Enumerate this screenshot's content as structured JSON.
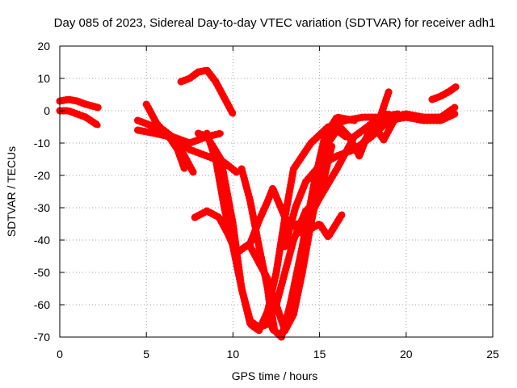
{
  "chart_data": {
    "type": "scatter",
    "title": "Day 085 of 2023, Sidereal Day-to-day VTEC variation (SDTVAR) for receiver adh1",
    "xlabel": "GPS time / hours",
    "ylabel": "SDTVAR / TECUs",
    "xlim": [
      0,
      25
    ],
    "ylim": [
      -70,
      20
    ],
    "x_ticks": [
      "0",
      "5",
      "10",
      "15",
      "20",
      "25"
    ],
    "y_ticks": [
      "20",
      "10",
      "0",
      "-10",
      "-20",
      "-30",
      "-40",
      "-50",
      "-60",
      "-70"
    ],
    "grid": true,
    "marker_color": "#ff0000",
    "series": [
      {
        "x": [
          0.0,
          0.5,
          1.0,
          1.5,
          2.2
        ],
        "y": [
          3,
          3.5,
          3,
          2,
          1
        ]
      },
      {
        "x": [
          0.0,
          0.5,
          1.0,
          1.5,
          2.2
        ],
        "y": [
          0,
          0,
          -1,
          -2,
          -4.5
        ]
      },
      {
        "x": [
          4.5,
          5.5,
          6.5,
          7.5,
          8.5,
          9.3
        ],
        "y": [
          -3,
          -5,
          -8,
          -10,
          -8,
          -7
        ]
      },
      {
        "x": [
          4.5,
          5.5,
          6.3,
          7.0,
          7.7
        ],
        "y": [
          -6,
          -7,
          -8,
          -12,
          -19
        ]
      },
      {
        "x": [
          5.0,
          5.6,
          6.3,
          6.8,
          7.2
        ],
        "y": [
          2,
          -4,
          -8,
          -12,
          -18
        ]
      },
      {
        "x": [
          5.3,
          6.0,
          6.7,
          7.5,
          8.5,
          9.5,
          10.2
        ],
        "y": [
          -5,
          -6,
          -9,
          -12,
          -14,
          -16,
          -19
        ]
      },
      {
        "x": [
          7.0,
          7.5,
          8.0,
          8.5,
          9.0,
          9.6,
          10.0
        ],
        "y": [
          9,
          10,
          12,
          12.5,
          9,
          3,
          -1
        ]
      },
      {
        "x": [
          8.0,
          8.5,
          9.3,
          10.0,
          10.5,
          11.0,
          11.5,
          12.0,
          12.5,
          13.0,
          13.5,
          14.2,
          14.8,
          15.3,
          15.7
        ],
        "y": [
          -7,
          -8,
          -15,
          -35,
          -55,
          -65,
          -67,
          -66,
          -60,
          -50,
          -40,
          -31,
          -28,
          -20,
          -11
        ]
      },
      {
        "x": [
          8.5,
          9.0,
          9.5,
          10.0,
          10.5,
          11.0,
          11.5,
          12.0,
          12.5,
          13.0,
          13.5,
          14.5,
          15.5,
          16.5,
          17.5,
          18.5,
          19.5
        ],
        "y": [
          -7,
          -15,
          -30,
          -42,
          -55,
          -66,
          -68,
          -62,
          -50,
          -33,
          -18,
          -10,
          -5,
          -3,
          -2,
          -2,
          -1
        ]
      },
      {
        "x": [
          7.8,
          8.5,
          9.2,
          9.7,
          10.2,
          11.0,
          11.5,
          12.0,
          12.3,
          13.0,
          14.0,
          15.0,
          15.5,
          16.3
        ],
        "y": [
          -33,
          -31,
          -33,
          -38,
          -44,
          -41,
          -34,
          -28,
          -24,
          -33,
          -38,
          -35,
          -39,
          -32
        ]
      },
      {
        "x": [
          10.5,
          11.0,
          11.5,
          12.0,
          12.3
        ],
        "y": [
          -18,
          -28,
          -42,
          -55,
          -68
        ]
      },
      {
        "x": [
          11.0,
          11.5,
          12.0,
          12.5,
          13.0,
          13.5,
          14.0,
          14.5,
          15.0,
          15.5,
          16.0,
          16.5
        ],
        "y": [
          -42,
          -47,
          -52,
          -60,
          -68,
          -63,
          -50,
          -35,
          -22,
          -10,
          -6,
          -8
        ]
      },
      {
        "x": [
          12.0,
          12.4,
          12.8,
          13.3,
          14.0,
          14.7,
          15.3,
          16.0,
          17.0
        ],
        "y": [
          -55,
          -68,
          -70,
          -60,
          -42,
          -22,
          -8,
          -2,
          -3
        ]
      },
      {
        "x": [
          13.0,
          13.6,
          14.2,
          15.0,
          16.0,
          17.0,
          18.0,
          19.0,
          20.0
        ],
        "y": [
          -42,
          -30,
          -22,
          -17,
          -14,
          -12,
          -8,
          -3,
          -2
        ]
      },
      {
        "x": [
          13.5,
          14.0,
          14.5,
          15.0,
          16.0,
          17.0,
          18.0,
          19.0,
          20.0
        ],
        "y": [
          -35,
          -35,
          -32,
          -27,
          -18,
          -8,
          -4,
          -2,
          -1
        ]
      },
      {
        "x": [
          16.0,
          16.7,
          17.3,
          17.8,
          18.5,
          19.0
        ],
        "y": [
          -4,
          -8,
          -14,
          -7,
          -2,
          6
        ]
      },
      {
        "x": [
          17.5,
          18.2,
          18.7,
          19.3,
          20.0,
          21.0,
          22.0,
          22.8
        ],
        "y": [
          -10,
          -5,
          -9,
          -3,
          -1,
          -2,
          -2,
          1
        ]
      },
      {
        "x": [
          18.8,
          20.0,
          21.0,
          22.0,
          22.8
        ],
        "y": [
          -1,
          -2,
          -3,
          -3,
          -1
        ]
      },
      {
        "x": [
          21.5,
          22.0,
          22.5,
          22.9
        ],
        "y": [
          3.5,
          4.5,
          6,
          7.5
        ]
      }
    ]
  }
}
